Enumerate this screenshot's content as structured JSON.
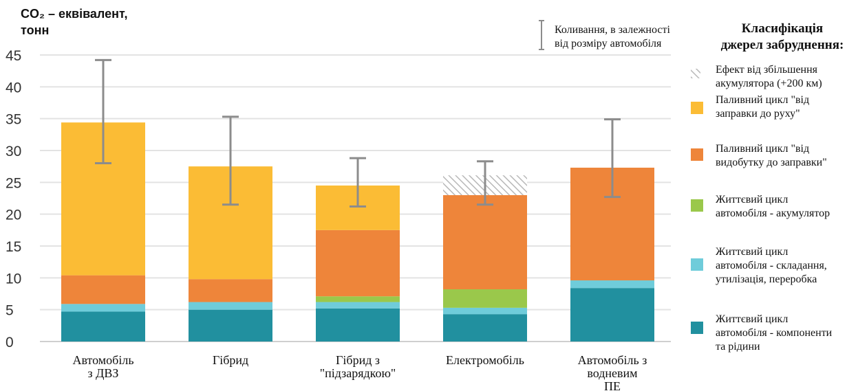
{
  "chart_data": {
    "type": "bar",
    "stacked": true,
    "ylabel_line1": "CO₂ – еквівалент,",
    "ylabel_line2": "тонн",
    "ylim": [
      0,
      45
    ],
    "yticks": [
      0,
      5,
      10,
      15,
      20,
      25,
      30,
      35,
      40,
      45
    ],
    "grid": true,
    "categories": [
      [
        "Автомобіль",
        "з ДВЗ"
      ],
      [
        "Гібрид"
      ],
      [
        "Гібрид з",
        "\"підзарядкою\""
      ],
      [
        "Електромобіль"
      ],
      [
        "Автомобіль з",
        "водневим",
        "ПЕ"
      ]
    ],
    "series": [
      {
        "name": "Життєвий цикл автомобіля - компоненти та рідини",
        "color": "#21909F",
        "values": [
          4.7,
          5.0,
          5.2,
          4.3,
          8.4
        ]
      },
      {
        "name": "Життєвий цикл автомобіля - складання, утилізація, переробка",
        "color": "#6FCCDA",
        "values": [
          1.2,
          1.2,
          1.0,
          1.0,
          1.2
        ]
      },
      {
        "name": "Життєвий цикл автомобіля - акумулятор",
        "color": "#9AC84B",
        "values": [
          0,
          0,
          0.9,
          2.9,
          0
        ]
      },
      {
        "name": "Паливний цикл \"від видобутку до заправки\"",
        "color": "#EE853A",
        "values": [
          4.5,
          3.6,
          10.4,
          14.8,
          17.7
        ]
      },
      {
        "name": "Паливний цикл \"від заправки до руху\"",
        "color": "#FBBC35",
        "values": [
          24.0,
          17.7,
          7.0,
          0,
          0
        ]
      },
      {
        "name": "Ефект від збільшення акумулятора (+200 км)",
        "color": "hatch",
        "values": [
          0,
          0,
          0,
          3.1,
          0
        ]
      }
    ],
    "error_bars": [
      {
        "low": 28.0,
        "high": 44.2
      },
      {
        "low": 21.5,
        "high": 35.3
      },
      {
        "low": 21.2,
        "high": 28.8
      },
      {
        "low": 21.5,
        "high": 28.3
      },
      {
        "low": 22.7,
        "high": 34.9
      }
    ],
    "error_legend_lines": [
      "Коливання, в залежності",
      "від розміру автомобіля"
    ],
    "legend_title_lines": [
      "Класифікація",
      "джерел забруднення:"
    ],
    "legend": [
      {
        "color": "hatch",
        "lines": [
          "Ефект від збільшення",
          "акумулятора (+200 км)"
        ]
      },
      {
        "color": "#FBBC35",
        "lines": [
          "Паливний цикл \"від",
          "заправки до руху\""
        ]
      },
      {
        "color": "#EE853A",
        "lines": [
          "Паливний цикл \"від",
          "видобутку до заправки\""
        ]
      },
      {
        "color": "#9AC84B",
        "lines": [
          "Життєвий цикл",
          "автомобіля - акумулятор"
        ]
      },
      {
        "color": "#6FCCDA",
        "lines": [
          "Життєвий цикл",
          "автомобіля - складання,",
          "утилізація, переробка"
        ]
      },
      {
        "color": "#21909F",
        "lines": [
          "Життєвий цикл",
          "автомобіля - компоненти",
          "та рідини"
        ]
      }
    ]
  }
}
